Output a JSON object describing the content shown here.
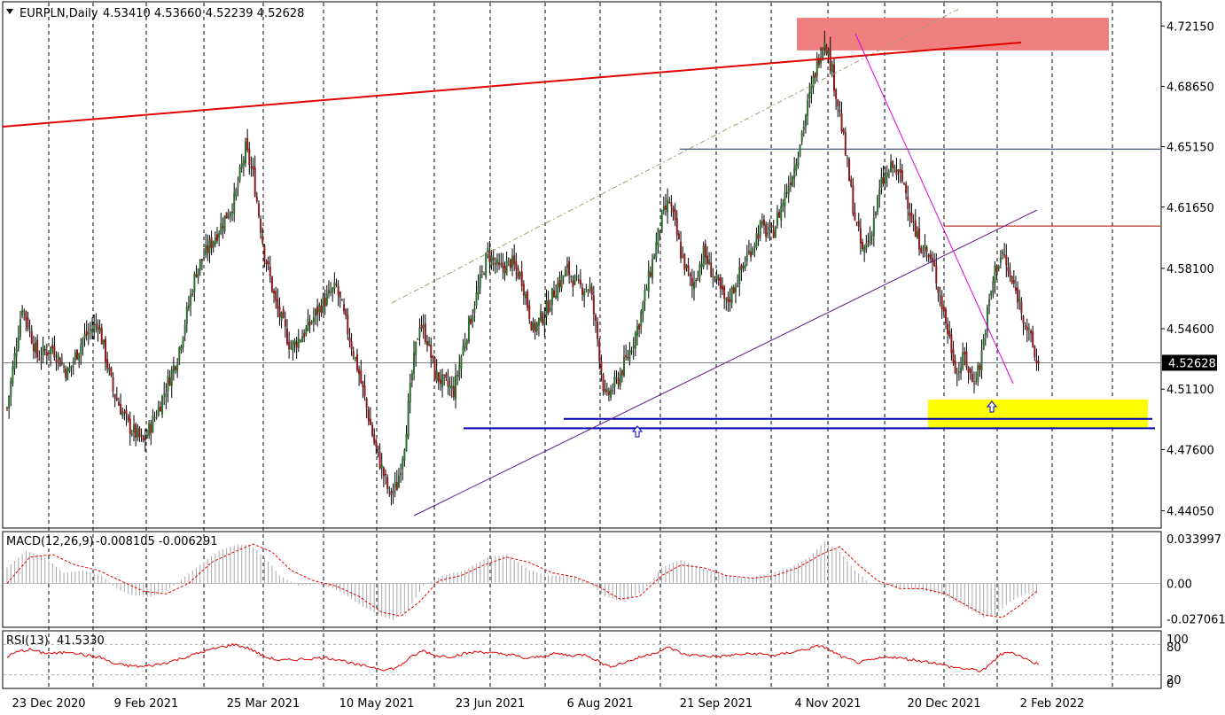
{
  "header": {
    "symbol": "EURPLN,Daily",
    "ohlc": "4.53410 4.53660 4.52239 4.52628"
  },
  "colors": {
    "bull": "#2e6b2e",
    "bear": "#8b1a1a",
    "resistance_line": "#e00000",
    "resistance_zone": "#f08080",
    "support_zone": "#ffff00",
    "support_line": "#0000b0",
    "trend_line": "#5a1a8a",
    "down_trend": "#e000e0",
    "macd_signal": "#e00000",
    "rsi_line": "#e00000"
  },
  "chart_data": [
    {
      "type": "candlestick",
      "name": "EURPLN,Daily",
      "ohlc": "4.53410 4.53660 4.52239 4.52628",
      "x_tick_labels": [
        "23 Dec 2020",
        "9 Feb 2021",
        "25 Mar 2021",
        "10 May 2021",
        "23 Jun 2021",
        "6 Aug 2021",
        "21 Sep 2021",
        "4 Nov 2021",
        "20 Dec 2021",
        "2 Feb 2022"
      ],
      "y_tick_labels": [
        "4.72150",
        "4.68650",
        "4.65150",
        "4.61650",
        "4.58100",
        "4.54600",
        "4.51100",
        "4.47600",
        "4.44050"
      ],
      "ylim": [
        4.4305,
        4.7355
      ],
      "current_price_label": "4.52628",
      "close_path": [
        [
          0,
          4.5
        ],
        [
          8,
          4.56
        ],
        [
          16,
          4.53
        ],
        [
          24,
          4.535
        ],
        [
          32,
          4.52
        ],
        [
          40,
          4.54
        ],
        [
          48,
          4.55
        ],
        [
          56,
          4.51
        ],
        [
          64,
          4.49
        ],
        [
          72,
          4.48
        ],
        [
          80,
          4.5
        ],
        [
          90,
          4.53
        ],
        [
          100,
          4.58
        ],
        [
          110,
          4.6
        ],
        [
          120,
          4.62
        ],
        [
          126,
          4.65
        ],
        [
          130,
          4.635
        ],
        [
          136,
          4.59
        ],
        [
          142,
          4.56
        ],
        [
          150,
          4.535
        ],
        [
          158,
          4.545
        ],
        [
          166,
          4.56
        ],
        [
          174,
          4.57
        ],
        [
          180,
          4.545
        ],
        [
          186,
          4.52
        ],
        [
          190,
          4.5
        ],
        [
          194,
          4.48
        ],
        [
          198,
          4.465
        ],
        [
          202,
          4.45
        ],
        [
          206,
          4.455
        ],
        [
          210,
          4.48
        ],
        [
          214,
          4.52
        ],
        [
          218,
          4.55
        ],
        [
          222,
          4.54
        ],
        [
          226,
          4.52
        ],
        [
          230,
          4.515
        ],
        [
          236,
          4.51
        ],
        [
          242,
          4.54
        ],
        [
          248,
          4.565
        ],
        [
          254,
          4.59
        ],
        [
          260,
          4.58
        ],
        [
          266,
          4.585
        ],
        [
          272,
          4.575
        ],
        [
          278,
          4.545
        ],
        [
          284,
          4.555
        ],
        [
          290,
          4.57
        ],
        [
          296,
          4.58
        ],
        [
          302,
          4.57
        ],
        [
          308,
          4.57
        ],
        [
          312,
          4.54
        ],
        [
          316,
          4.505
        ],
        [
          322,
          4.515
        ],
        [
          328,
          4.53
        ],
        [
          334,
          4.55
        ],
        [
          340,
          4.58
        ],
        [
          346,
          4.61
        ],
        [
          350,
          4.62
        ],
        [
          356,
          4.59
        ],
        [
          362,
          4.57
        ],
        [
          368,
          4.59
        ],
        [
          374,
          4.575
        ],
        [
          380,
          4.56
        ],
        [
          386,
          4.575
        ],
        [
          392,
          4.59
        ],
        [
          398,
          4.605
        ],
        [
          404,
          4.6
        ],
        [
          410,
          4.62
        ],
        [
          416,
          4.64
        ],
        [
          420,
          4.66
        ],
        [
          424,
          4.68
        ],
        [
          428,
          4.7
        ],
        [
          432,
          4.715
        ],
        [
          436,
          4.695
        ],
        [
          440,
          4.67
        ],
        [
          444,
          4.64
        ],
        [
          448,
          4.61
        ],
        [
          452,
          4.59
        ],
        [
          456,
          4.6
        ],
        [
          462,
          4.63
        ],
        [
          468,
          4.64
        ],
        [
          474,
          4.63
        ],
        [
          480,
          4.6
        ],
        [
          486,
          4.59
        ],
        [
          490,
          4.58
        ],
        [
          494,
          4.56
        ],
        [
          498,
          4.54
        ],
        [
          502,
          4.52
        ],
        [
          506,
          4.53
        ],
        [
          510,
          4.515
        ],
        [
          514,
          4.525
        ],
        [
          518,
          4.555
        ],
        [
          522,
          4.58
        ],
        [
          526,
          4.59
        ],
        [
          530,
          4.575
        ],
        [
          534,
          4.565
        ],
        [
          538,
          4.55
        ],
        [
          542,
          4.535
        ],
        [
          544,
          4.526
        ]
      ],
      "horizontal_levels": [
        4.65015,
        4.6055,
        4.52628
      ],
      "resistance_zone": {
        "from": 4.7073,
        "to": 4.7262
      },
      "support_zone": {
        "from": 4.4883,
        "to": 4.505
      },
      "support_lines": [
        4.4938,
        4.4883
      ]
    },
    {
      "type": "bar",
      "name": "MACD(12,26,9)",
      "values_label": "-0.008105 -0.006291",
      "y_tick_labels": [
        "0.033997",
        "0.00",
        "-0.027061"
      ],
      "ylim": [
        -0.0335,
        0.0395
      ],
      "histogram_path": [
        [
          0,
          0.012
        ],
        [
          10,
          0.025
        ],
        [
          20,
          0.02
        ],
        [
          30,
          0.008
        ],
        [
          40,
          0.01
        ],
        [
          50,
          0.006
        ],
        [
          58,
          -0.004
        ],
        [
          66,
          -0.009
        ],
        [
          76,
          -0.01
        ],
        [
          86,
          -0.004
        ],
        [
          100,
          0.012
        ],
        [
          112,
          0.025
        ],
        [
          120,
          0.029
        ],
        [
          128,
          0.03
        ],
        [
          136,
          0.02
        ],
        [
          144,
          0.006
        ],
        [
          154,
          -0.002
        ],
        [
          164,
          0.0
        ],
        [
          176,
          -0.006
        ],
        [
          186,
          -0.016
        ],
        [
          196,
          -0.024
        ],
        [
          204,
          -0.028
        ],
        [
          212,
          -0.02
        ],
        [
          220,
          -0.002
        ],
        [
          230,
          0.006
        ],
        [
          242,
          0.01
        ],
        [
          254,
          0.02
        ],
        [
          264,
          0.022
        ],
        [
          276,
          0.01
        ],
        [
          286,
          0.006
        ],
        [
          296,
          0.006
        ],
        [
          306,
          0.002
        ],
        [
          316,
          -0.01
        ],
        [
          326,
          -0.014
        ],
        [
          336,
          -0.006
        ],
        [
          346,
          0.012
        ],
        [
          356,
          0.018
        ],
        [
          366,
          0.012
        ],
        [
          380,
          0.006
        ],
        [
          392,
          0.004
        ],
        [
          404,
          0.008
        ],
        [
          414,
          0.012
        ],
        [
          424,
          0.02
        ],
        [
          432,
          0.032
        ],
        [
          440,
          0.024
        ],
        [
          448,
          0.01
        ],
        [
          456,
          0.0
        ],
        [
          466,
          -0.002
        ],
        [
          476,
          -0.004
        ],
        [
          486,
          -0.006
        ],
        [
          496,
          -0.01
        ],
        [
          506,
          -0.018
        ],
        [
          516,
          -0.026
        ],
        [
          522,
          -0.024
        ],
        [
          530,
          -0.014
        ],
        [
          538,
          -0.008
        ],
        [
          544,
          -0.008
        ]
      ],
      "signal_path": [
        [
          0,
          0.0
        ],
        [
          12,
          0.02
        ],
        [
          24,
          0.022
        ],
        [
          36,
          0.014
        ],
        [
          48,
          0.01
        ],
        [
          60,
          0.002
        ],
        [
          72,
          -0.006
        ],
        [
          84,
          -0.008
        ],
        [
          96,
          0.0
        ],
        [
          108,
          0.016
        ],
        [
          120,
          0.024
        ],
        [
          130,
          0.03
        ],
        [
          140,
          0.024
        ],
        [
          150,
          0.01
        ],
        [
          162,
          0.002
        ],
        [
          174,
          -0.002
        ],
        [
          186,
          -0.01
        ],
        [
          198,
          -0.022
        ],
        [
          208,
          -0.025
        ],
        [
          218,
          -0.014
        ],
        [
          228,
          0.002
        ],
        [
          240,
          0.006
        ],
        [
          252,
          0.014
        ],
        [
          264,
          0.02
        ],
        [
          276,
          0.016
        ],
        [
          288,
          0.008
        ],
        [
          300,
          0.005
        ],
        [
          312,
          -0.002
        ],
        [
          324,
          -0.012
        ],
        [
          334,
          -0.01
        ],
        [
          346,
          0.006
        ],
        [
          356,
          0.014
        ],
        [
          368,
          0.012
        ],
        [
          380,
          0.006
        ],
        [
          394,
          0.004
        ],
        [
          406,
          0.006
        ],
        [
          418,
          0.012
        ],
        [
          430,
          0.022
        ],
        [
          440,
          0.028
        ],
        [
          450,
          0.014
        ],
        [
          460,
          0.002
        ],
        [
          472,
          -0.004
        ],
        [
          484,
          -0.004
        ],
        [
          496,
          -0.008
        ],
        [
          506,
          -0.016
        ],
        [
          516,
          -0.024
        ],
        [
          526,
          -0.026
        ],
        [
          536,
          -0.016
        ],
        [
          544,
          -0.006
        ]
      ]
    },
    {
      "type": "line",
      "name": "RSI(13)",
      "value_label": "41.5330",
      "y_tick_labels": [
        "100",
        "80",
        "20",
        "0"
      ],
      "ylim": [
        0,
        100
      ],
      "levels": [
        80,
        20
      ],
      "values_path": [
        [
          0,
          56
        ],
        [
          6,
          66
        ],
        [
          12,
          70
        ],
        [
          18,
          64
        ],
        [
          26,
          62
        ],
        [
          34,
          66
        ],
        [
          42,
          58
        ],
        [
          50,
          54
        ],
        [
          56,
          42
        ],
        [
          64,
          38
        ],
        [
          72,
          36
        ],
        [
          82,
          42
        ],
        [
          92,
          52
        ],
        [
          102,
          64
        ],
        [
          112,
          74
        ],
        [
          120,
          80
        ],
        [
          128,
          72
        ],
        [
          136,
          56
        ],
        [
          144,
          48
        ],
        [
          152,
          50
        ],
        [
          160,
          52
        ],
        [
          168,
          54
        ],
        [
          176,
          50
        ],
        [
          184,
          40
        ],
        [
          192,
          36
        ],
        [
          200,
          30
        ],
        [
          206,
          34
        ],
        [
          214,
          56
        ],
        [
          220,
          68
        ],
        [
          226,
          58
        ],
        [
          234,
          56
        ],
        [
          242,
          62
        ],
        [
          250,
          66
        ],
        [
          258,
          62
        ],
        [
          266,
          60
        ],
        [
          274,
          52
        ],
        [
          282,
          56
        ],
        [
          290,
          62
        ],
        [
          298,
          58
        ],
        [
          306,
          60
        ],
        [
          312,
          48
        ],
        [
          318,
          36
        ],
        [
          326,
          44
        ],
        [
          334,
          54
        ],
        [
          344,
          66
        ],
        [
          350,
          74
        ],
        [
          358,
          60
        ],
        [
          366,
          58
        ],
        [
          376,
          56
        ],
        [
          386,
          60
        ],
        [
          396,
          62
        ],
        [
          406,
          58
        ],
        [
          416,
          66
        ],
        [
          424,
          72
        ],
        [
          430,
          78
        ],
        [
          436,
          66
        ],
        [
          442,
          54
        ],
        [
          450,
          44
        ],
        [
          458,
          50
        ],
        [
          466,
          56
        ],
        [
          474,
          52
        ],
        [
          482,
          48
        ],
        [
          490,
          44
        ],
        [
          498,
          36
        ],
        [
          506,
          32
        ],
        [
          514,
          28
        ],
        [
          518,
          34
        ],
        [
          524,
          58
        ],
        [
          530,
          66
        ],
        [
          536,
          56
        ],
        [
          540,
          48
        ],
        [
          544,
          42
        ]
      ]
    }
  ]
}
